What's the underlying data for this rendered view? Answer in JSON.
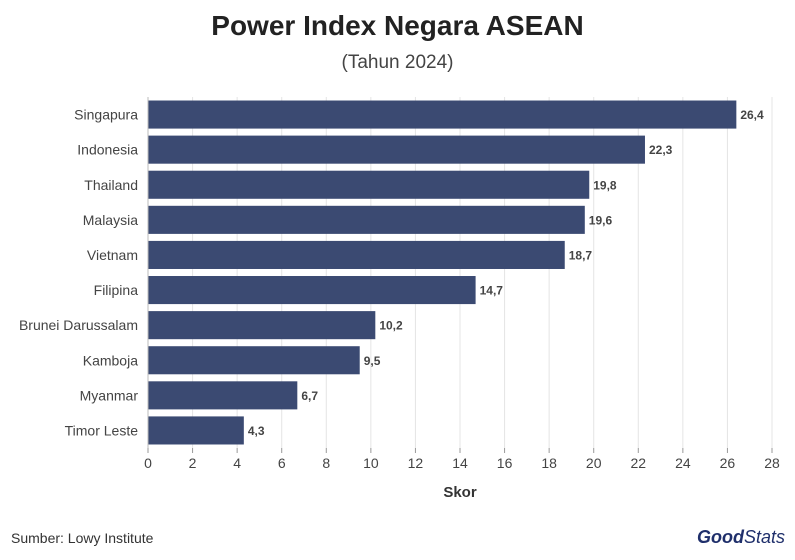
{
  "chart_data": {
    "type": "bar",
    "orientation": "horizontal",
    "title": "Power Index Negara ASEAN",
    "subtitle": "(Tahun 2024)",
    "xlabel": "Skor",
    "ylabel": "",
    "xlim": [
      0,
      28
    ],
    "xticks": [
      0,
      2,
      4,
      6,
      8,
      10,
      12,
      14,
      16,
      18,
      20,
      22,
      24,
      26,
      28
    ],
    "grid": true,
    "categories": [
      "Singapura",
      "Indonesia",
      "Thailand",
      "Malaysia",
      "Vietnam",
      "Filipina",
      "Brunei Darussalam",
      "Kamboja",
      "Myanmar",
      "Timor Leste"
    ],
    "values": [
      26.4,
      22.3,
      19.8,
      19.6,
      18.7,
      14.7,
      10.2,
      9.5,
      6.7,
      4.3
    ],
    "value_labels": [
      "26,4",
      "22,3",
      "19,8",
      "19,6",
      "18,7",
      "14,7",
      "10,2",
      "9,5",
      "6,7",
      "4,3"
    ],
    "bar_color": "#3b4a72"
  },
  "footer": {
    "source": "Sumber: Lowy Institute",
    "brand_bold": "Good",
    "brand_thin": "Stats"
  }
}
